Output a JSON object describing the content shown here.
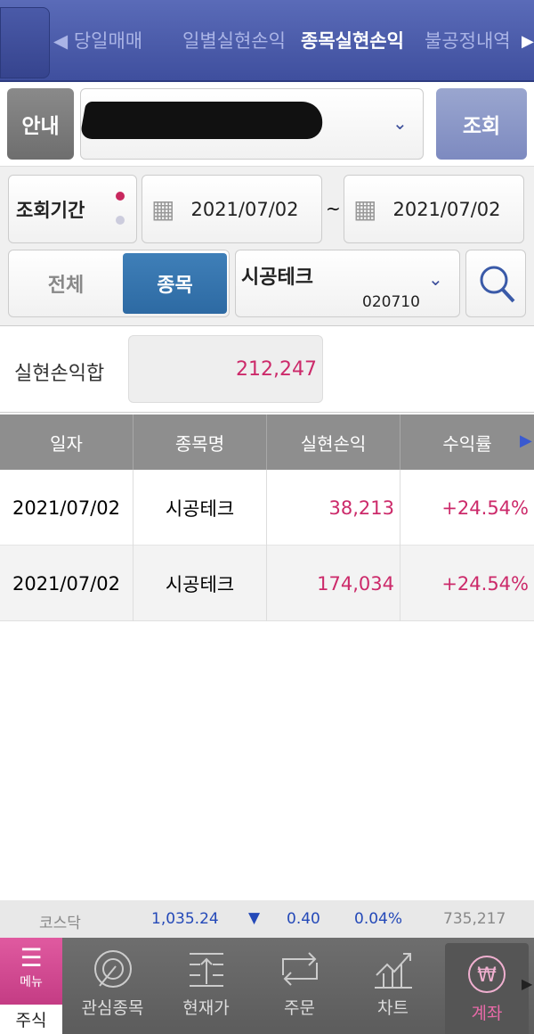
{
  "tabs": [
    {
      "label": "◀ 당일매매"
    },
    {
      "label": "일별실현손익"
    },
    {
      "label": "종목실현손익"
    },
    {
      "label": "불공정내역"
    }
  ],
  "toolbar": {
    "guide_label": "안내",
    "query_label": "조회"
  },
  "period": {
    "label": "조회기간",
    "start_date": "2021/07/02",
    "separator": "~",
    "end_date": "2021/07/02"
  },
  "filter": {
    "all_label": "전체",
    "stock_label": "종목",
    "selected": "종목",
    "stock_name": "시공테크",
    "stock_code": "020710"
  },
  "summary": {
    "label": "실현손익합",
    "value": "212,247"
  },
  "table": {
    "headers": [
      "일자",
      "종목명",
      "실현손익",
      "수익률"
    ],
    "rows": [
      {
        "date": "2021/07/02",
        "name": "시공테크",
        "pnl": "38,213",
        "rate": "+24.54%"
      },
      {
        "date": "2021/07/02",
        "name": "시공테크",
        "pnl": "174,034",
        "rate": "+24.54%"
      }
    ]
  },
  "index": {
    "name": "코스닥",
    "value": "1,035.24",
    "direction": "down",
    "change": "0.40",
    "change_pct": "0.04%",
    "volume": "735,217"
  },
  "nav": {
    "menu_label": "메뉴",
    "stock_label": "주식",
    "items": [
      {
        "label": "관심종목",
        "icon": "target-icon"
      },
      {
        "label": "현재가",
        "icon": "price-icon"
      },
      {
        "label": "주문",
        "icon": "exchange-icon"
      },
      {
        "label": "차트",
        "icon": "chart-icon"
      },
      {
        "label": "계좌",
        "icon": "won-icon"
      }
    ],
    "active": "계좌"
  },
  "colors": {
    "accent_blue": "#4a5aa8",
    "positive": "#cc2a6a",
    "index_blue": "#2449b8",
    "active_nav": "#e86aa8"
  }
}
